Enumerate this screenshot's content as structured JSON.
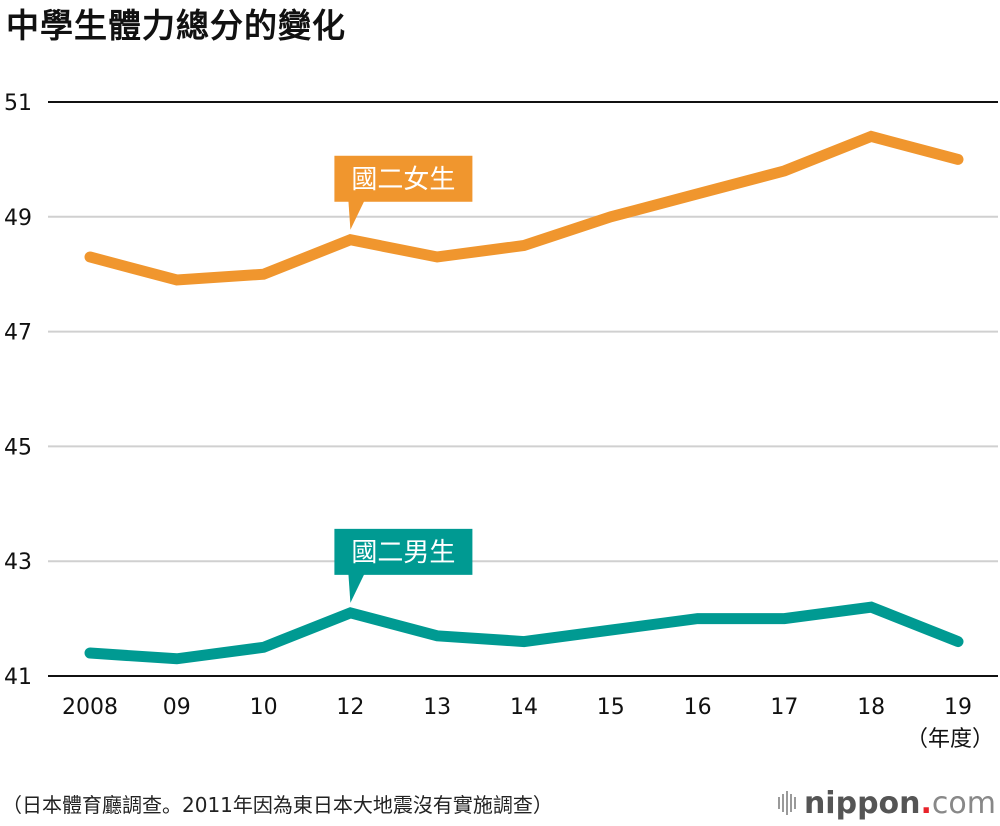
{
  "chart_data": {
    "type": "line",
    "title": "中學生體力總分的變化",
    "xlabel": "（年度）",
    "ylabel": "",
    "categories": [
      "2008",
      "09",
      "10",
      "12",
      "13",
      "14",
      "15",
      "16",
      "17",
      "18",
      "19"
    ],
    "ylim": [
      41,
      51
    ],
    "yticks": [
      41,
      43,
      45,
      47,
      49,
      51
    ],
    "grid": true,
    "series": [
      {
        "name": "國二女生",
        "color": "#F0962E",
        "values": [
          48.3,
          47.9,
          48.0,
          48.6,
          48.3,
          48.5,
          49.0,
          49.4,
          49.8,
          50.4,
          50.0
        ],
        "label_anchor_index": 3
      },
      {
        "name": "國二男生",
        "color": "#009A92",
        "values": [
          41.4,
          41.3,
          41.5,
          42.1,
          41.7,
          41.6,
          41.8,
          42.0,
          42.0,
          42.2,
          41.6
        ],
        "label_anchor_index": 3
      }
    ]
  },
  "footer": {
    "note": "（日本體育廳調查。2011年因為東日本大地震沒有實施調查）"
  },
  "logo": {
    "brand": "nippon",
    "dot": ".",
    "suffix": "com"
  }
}
